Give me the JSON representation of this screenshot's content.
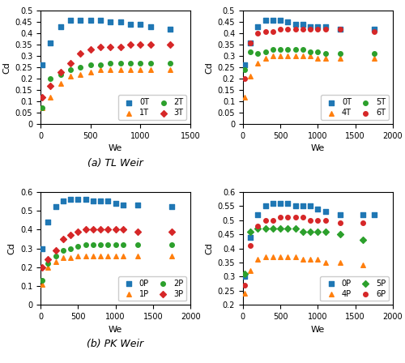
{
  "chart_data": [
    {
      "type": "scatter",
      "x_label": "We",
      "y_label": "Cd",
      "xlim": [
        0,
        1500
      ],
      "ylim": [
        0,
        0.5
      ],
      "xticks": [
        0,
        500,
        1000,
        1500
      ],
      "yticks": [
        0,
        0.05,
        0.1,
        0.15,
        0.2,
        0.25,
        0.3,
        0.35,
        0.4,
        0.45,
        0.5
      ],
      "grid": false,
      "legend": "lower right",
      "annotations": [
        {
          "text": "(a) TL Weir"
        }
      ],
      "series": [
        {
          "name": "0T",
          "marker": "square",
          "x": [
            20,
            100,
            200,
            300,
            400,
            500,
            600,
            700,
            800,
            900,
            1000,
            1100,
            1300
          ],
          "values": [
            0.26,
            0.36,
            0.43,
            0.46,
            0.46,
            0.46,
            0.46,
            0.45,
            0.45,
            0.44,
            0.44,
            0.43,
            0.42
          ]
        },
        {
          "name": "1T",
          "marker": "triangle",
          "x": [
            20,
            100,
            200,
            300,
            400,
            500,
            600,
            700,
            800,
            900,
            1000,
            1100,
            1300
          ],
          "values": [
            0.07,
            0.12,
            0.18,
            0.21,
            0.22,
            0.23,
            0.24,
            0.24,
            0.24,
            0.24,
            0.24,
            0.24,
            0.24
          ]
        },
        {
          "name": "2T",
          "marker": "circle",
          "x": [
            20,
            100,
            200,
            300,
            400,
            500,
            600,
            700,
            800,
            900,
            1000,
            1100,
            1300
          ],
          "values": [
            0.07,
            0.2,
            0.22,
            0.24,
            0.25,
            0.26,
            0.26,
            0.27,
            0.27,
            0.27,
            0.27,
            0.27,
            0.27
          ]
        },
        {
          "name": "3T",
          "marker": "diamond",
          "x": [
            20,
            100,
            200,
            300,
            400,
            500,
            600,
            700,
            800,
            900,
            1000,
            1100,
            1300
          ],
          "values": [
            0.12,
            0.17,
            0.23,
            0.27,
            0.31,
            0.33,
            0.34,
            0.34,
            0.34,
            0.35,
            0.35,
            0.35,
            0.35
          ]
        }
      ]
    },
    {
      "type": "scatter",
      "x_label": "We",
      "y_label": "Cd",
      "xlim": [
        0,
        2000
      ],
      "ylim": [
        0,
        0.5
      ],
      "xticks": [
        0,
        500,
        1000,
        1500,
        2000
      ],
      "yticks": [
        0,
        0.05,
        0.1,
        0.15,
        0.2,
        0.25,
        0.3,
        0.35,
        0.4,
        0.45,
        0.5
      ],
      "grid": false,
      "legend": "lower right",
      "series": [
        {
          "name": "0T",
          "marker": "square",
          "x": [
            20,
            100,
            200,
            300,
            400,
            500,
            600,
            700,
            800,
            900,
            1000,
            1100,
            1300,
            1750
          ],
          "values": [
            0.26,
            0.36,
            0.43,
            0.46,
            0.46,
            0.46,
            0.45,
            0.44,
            0.44,
            0.43,
            0.43,
            0.43,
            0.42,
            0.42
          ]
        },
        {
          "name": "4T",
          "marker": "triangle",
          "x": [
            20,
            100,
            200,
            300,
            400,
            500,
            600,
            700,
            800,
            900,
            1000,
            1100,
            1300,
            1750
          ],
          "values": [
            0.12,
            0.21,
            0.27,
            0.29,
            0.3,
            0.3,
            0.3,
            0.3,
            0.3,
            0.3,
            0.29,
            0.29,
            0.29,
            0.29
          ]
        },
        {
          "name": "5T",
          "marker": "circle",
          "x": [
            20,
            100,
            200,
            300,
            400,
            500,
            600,
            700,
            800,
            900,
            1000,
            1100,
            1300,
            1750
          ],
          "values": [
            0.24,
            0.32,
            0.31,
            0.32,
            0.33,
            0.33,
            0.33,
            0.33,
            0.33,
            0.32,
            0.32,
            0.31,
            0.31,
            0.31
          ]
        },
        {
          "name": "6T",
          "marker": "circle",
          "x": [
            20,
            100,
            200,
            300,
            400,
            500,
            600,
            700,
            800,
            900,
            1000,
            1100,
            1300,
            1750
          ],
          "values": [
            0.2,
            0.36,
            0.4,
            0.41,
            0.41,
            0.42,
            0.42,
            0.42,
            0.42,
            0.42,
            0.42,
            0.42,
            0.42,
            0.41
          ]
        }
      ]
    },
    {
      "type": "scatter",
      "x_label": "We",
      "y_label": "Cd",
      "xlim": [
        0,
        2000
      ],
      "ylim": [
        0,
        0.6
      ],
      "xticks": [
        0,
        500,
        1000,
        1500,
        2000
      ],
      "yticks": [
        0,
        0.1,
        0.2,
        0.3,
        0.4,
        0.5,
        0.6
      ],
      "grid": false,
      "legend": "lower right",
      "annotations": [
        {
          "text": "(b) PK Weir"
        }
      ],
      "series": [
        {
          "name": "0P",
          "marker": "square",
          "x": [
            20,
            100,
            200,
            300,
            400,
            500,
            600,
            700,
            800,
            900,
            1000,
            1100,
            1300,
            1750
          ],
          "values": [
            0.3,
            0.44,
            0.52,
            0.55,
            0.56,
            0.56,
            0.56,
            0.55,
            0.55,
            0.55,
            0.54,
            0.53,
            0.53,
            0.52
          ]
        },
        {
          "name": "1P",
          "marker": "triangle",
          "x": [
            20,
            100,
            200,
            300,
            400,
            500,
            600,
            700,
            800,
            900,
            1000,
            1100,
            1300,
            1750
          ],
          "values": [
            0.11,
            0.2,
            0.23,
            0.25,
            0.25,
            0.26,
            0.26,
            0.26,
            0.26,
            0.26,
            0.26,
            0.26,
            0.26,
            0.26
          ]
        },
        {
          "name": "2P",
          "marker": "circle",
          "x": [
            20,
            100,
            200,
            300,
            400,
            500,
            600,
            700,
            800,
            900,
            1000,
            1100,
            1300,
            1750
          ],
          "values": [
            0.13,
            0.22,
            0.26,
            0.29,
            0.3,
            0.31,
            0.32,
            0.32,
            0.32,
            0.32,
            0.32,
            0.32,
            0.32,
            0.32
          ]
        },
        {
          "name": "3P",
          "marker": "diamond",
          "x": [
            20,
            100,
            200,
            300,
            400,
            500,
            600,
            700,
            800,
            900,
            1000,
            1100,
            1300,
            1750
          ],
          "values": [
            0.2,
            0.24,
            0.29,
            0.35,
            0.37,
            0.39,
            0.4,
            0.4,
            0.4,
            0.4,
            0.4,
            0.4,
            0.39,
            0.39
          ]
        }
      ]
    },
    {
      "type": "scatter",
      "x_label": "We",
      "y_label": "Cd",
      "xlim": [
        0,
        2000
      ],
      "ylim": [
        0.2,
        0.6
      ],
      "xticks": [
        0,
        500,
        1000,
        1500,
        2000
      ],
      "yticks": [
        0.2,
        0.25,
        0.3,
        0.35,
        0.4,
        0.45,
        0.5,
        0.55,
        0.6
      ],
      "grid": false,
      "legend": "lower right",
      "series": [
        {
          "name": "0P",
          "marker": "square",
          "x": [
            20,
            100,
            200,
            300,
            400,
            500,
            600,
            700,
            800,
            900,
            1000,
            1100,
            1300,
            1600,
            1750
          ],
          "values": [
            0.3,
            0.44,
            0.52,
            0.55,
            0.56,
            0.56,
            0.56,
            0.55,
            0.55,
            0.55,
            0.54,
            0.53,
            0.52,
            0.52,
            0.52
          ]
        },
        {
          "name": "4P",
          "marker": "triangle",
          "x": [
            20,
            100,
            200,
            300,
            400,
            500,
            600,
            700,
            800,
            900,
            1000,
            1100,
            1300,
            1600
          ],
          "values": [
            0.24,
            0.32,
            0.36,
            0.37,
            0.37,
            0.37,
            0.37,
            0.37,
            0.36,
            0.36,
            0.36,
            0.35,
            0.35,
            0.34
          ]
        },
        {
          "name": "5P",
          "marker": "diamond",
          "x": [
            20,
            100,
            200,
            300,
            400,
            500,
            600,
            700,
            800,
            900,
            1000,
            1100,
            1300,
            1600
          ],
          "values": [
            0.31,
            0.46,
            0.47,
            0.47,
            0.47,
            0.47,
            0.47,
            0.47,
            0.46,
            0.46,
            0.46,
            0.46,
            0.45,
            0.43
          ]
        },
        {
          "name": "6P",
          "marker": "circle",
          "x": [
            20,
            100,
            200,
            300,
            400,
            500,
            600,
            700,
            800,
            900,
            1000,
            1100,
            1300,
            1600
          ],
          "values": [
            0.27,
            0.41,
            0.48,
            0.5,
            0.5,
            0.51,
            0.51,
            0.51,
            0.51,
            0.5,
            0.5,
            0.5,
            0.49,
            0.49
          ]
        }
      ]
    }
  ]
}
